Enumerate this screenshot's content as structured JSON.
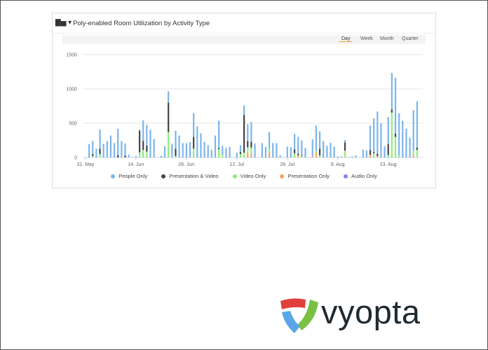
{
  "header": {
    "title": "Poly-enabled Room Utilization by Activity Type",
    "chart_menu_icon": "bar-chart-icon"
  },
  "range_buttons": [
    {
      "label": "Day",
      "active": true
    },
    {
      "label": "Week",
      "active": false
    },
    {
      "label": "Month",
      "active": false
    },
    {
      "label": "Quarter",
      "active": false
    }
  ],
  "logo": {
    "text": "vyopta",
    "colors": [
      "#e0413a",
      "#79c142",
      "#5aa6e8"
    ]
  },
  "chart_data": {
    "type": "bar",
    "stacked": true,
    "title": "Poly-enabled Room Utilization by Activity Type",
    "xlabel": "",
    "ylabel": "",
    "ylim": [
      0,
      1500
    ],
    "yticks": [
      "0",
      "500",
      "1000",
      "1500"
    ],
    "xtick_labels": [
      "31. May",
      "14. Jun",
      "28. Jun",
      "12. Jul",
      "26. Jul",
      "9. Aug",
      "23. Aug"
    ],
    "grid": true,
    "legend_position": "bottom",
    "x": [
      "1 Jun",
      "2 Jun",
      "3 Jun",
      "4 Jun",
      "5 Jun",
      "6 Jun",
      "7 Jun",
      "8 Jun",
      "9 Jun",
      "10 Jun",
      "11 Jun",
      "12 Jun",
      "13 Jun",
      "14 Jun",
      "15 Jun",
      "16 Jun",
      "17 Jun",
      "18 Jun",
      "19 Jun",
      "20 Jun",
      "21 Jun",
      "22 Jun",
      "23 Jun",
      "24 Jun",
      "25 Jun",
      "26 Jun",
      "27 Jun",
      "28 Jun",
      "29 Jun",
      "30 Jun",
      "1 Jul",
      "2 Jul",
      "3 Jul",
      "4 Jul",
      "5 Jul",
      "6 Jul",
      "7 Jul",
      "8 Jul",
      "9 Jul",
      "10 Jul",
      "11 Jul",
      "12 Jul",
      "13 Jul",
      "14 Jul",
      "15 Jul",
      "16 Jul",
      "17 Jul",
      "18 Jul",
      "19 Jul",
      "20 Jul",
      "21 Jul",
      "22 Jul",
      "23 Jul",
      "24 Jul",
      "25 Jul",
      "26 Jul",
      "27 Jul",
      "28 Jul",
      "29 Jul",
      "30 Jul",
      "31 Jul",
      "1 Aug",
      "2 Aug",
      "3 Aug",
      "4 Aug",
      "5 Aug",
      "6 Aug",
      "7 Aug",
      "8 Aug",
      "9 Aug",
      "10 Aug",
      "11 Aug",
      "12 Aug",
      "13 Aug",
      "14 Aug",
      "15 Aug",
      "16 Aug",
      "17 Aug",
      "18 Aug",
      "19 Aug",
      "20 Aug",
      "21 Aug",
      "22 Aug",
      "23 Aug",
      "24 Aug",
      "25 Aug",
      "26 Aug",
      "27 Aug",
      "28 Aug",
      "29 Aug",
      "30 Aug",
      "31 Aug"
    ],
    "series": [
      {
        "name": "Presentation Only",
        "color": "#f7a35c",
        "values": [
          0,
          0,
          0,
          0,
          0,
          0,
          0,
          0,
          0,
          0,
          0,
          0,
          0,
          0,
          0,
          0,
          0,
          0,
          0,
          0,
          0,
          0,
          0,
          0,
          0,
          0,
          0,
          0,
          0,
          0,
          0,
          0,
          0,
          0,
          0,
          0,
          0,
          0,
          0,
          0,
          0,
          0,
          0,
          0,
          60,
          60,
          0,
          0,
          0,
          0,
          80,
          0,
          0,
          0,
          0,
          0,
          0,
          0,
          30,
          0,
          0,
          0,
          20,
          70,
          0,
          0,
          0,
          0,
          0,
          0,
          0,
          0,
          0,
          0,
          0,
          0,
          0,
          0,
          40,
          0,
          20,
          0,
          0,
          0,
          0,
          0,
          0,
          0,
          0,
          0,
          40,
          0
        ]
      },
      {
        "name": "Video Only",
        "color": "#90ed7d",
        "values": [
          0,
          20,
          0,
          50,
          0,
          0,
          0,
          0,
          0,
          0,
          0,
          0,
          0,
          0,
          75,
          110,
          85,
          0,
          0,
          0,
          0,
          0,
          370,
          0,
          20,
          0,
          0,
          0,
          0,
          130,
          0,
          0,
          0,
          0,
          0,
          0,
          120,
          40,
          0,
          0,
          0,
          0,
          50,
          70,
          90,
          85,
          0,
          0,
          0,
          0,
          50,
          0,
          0,
          0,
          0,
          0,
          0,
          60,
          0,
          25,
          0,
          0,
          0,
          20,
          30,
          0,
          0,
          0,
          0,
          0,
          0,
          100,
          0,
          0,
          0,
          0,
          0,
          0,
          0,
          60,
          0,
          0,
          0,
          35,
          655,
          300,
          30,
          0,
          0,
          0,
          60,
          110
        ]
      },
      {
        "name": "Presentation & Video",
        "color": "#434348",
        "values": [
          0,
          30,
          0,
          80,
          0,
          0,
          0,
          0,
          35,
          0,
          30,
          0,
          0,
          0,
          315,
          130,
          90,
          0,
          0,
          0,
          0,
          0,
          430,
          0,
          110,
          0,
          0,
          0,
          0,
          170,
          0,
          0,
          0,
          0,
          0,
          0,
          20,
          0,
          0,
          0,
          0,
          0,
          30,
          550,
          90,
          85,
          0,
          0,
          0,
          0,
          0,
          0,
          0,
          0,
          0,
          0,
          0,
          60,
          25,
          10,
          0,
          0,
          0,
          0,
          100,
          0,
          0,
          0,
          0,
          0,
          0,
          120,
          0,
          0,
          0,
          0,
          0,
          0,
          70,
          20,
          35,
          0,
          0,
          160,
          45,
          50,
          0,
          0,
          0,
          0,
          0,
          35
        ]
      },
      {
        "name": "People Only",
        "color": "#7cb5ec",
        "values": [
          195,
          190,
          130,
          280,
          200,
          240,
          320,
          210,
          385,
          240,
          175,
          40,
          5,
          20,
          20,
          300,
          300,
          405,
          270,
          0,
          25,
          165,
          165,
          200,
          260,
          320,
          210,
          210,
          225,
          345,
          455,
          350,
          230,
          180,
          110,
          320,
          395,
          130,
          140,
          155,
          0,
          70,
          100,
          140,
          245,
          285,
          205,
          0,
          210,
          155,
          240,
          210,
          210,
          30,
          0,
          160,
          150,
          225,
          245,
          215,
          140,
          0,
          245,
          375,
          250,
          240,
          170,
          215,
          160,
          15,
          15,
          35,
          5,
          15,
          30,
          0,
          115,
          105,
          355,
          490,
          615,
          500,
          165,
          395,
          535,
          810,
          615,
          535,
          420,
          290,
          590,
          675
        ]
      },
      {
        "name": "Audio Only",
        "color": "#8085e9",
        "values": [
          0,
          0,
          0,
          0,
          0,
          0,
          0,
          0,
          0,
          0,
          0,
          0,
          0,
          0,
          0,
          0,
          0,
          0,
          0,
          0,
          0,
          0,
          0,
          0,
          0,
          0,
          0,
          0,
          0,
          0,
          0,
          0,
          0,
          0,
          0,
          0,
          0,
          0,
          0,
          0,
          0,
          0,
          0,
          0,
          0,
          0,
          0,
          0,
          0,
          0,
          0,
          0,
          0,
          0,
          0,
          0,
          0,
          0,
          0,
          0,
          0,
          0,
          0,
          0,
          0,
          0,
          0,
          0,
          0,
          0,
          0,
          0,
          0,
          0,
          0,
          0,
          0,
          0,
          0,
          0,
          0,
          0,
          0,
          0,
          0,
          0,
          0,
          0,
          0,
          0,
          0,
          0
        ]
      }
    ],
    "legend": [
      "People Only",
      "Presentation & Video",
      "Video Only",
      "Presentation Only",
      "Audio Only"
    ]
  }
}
